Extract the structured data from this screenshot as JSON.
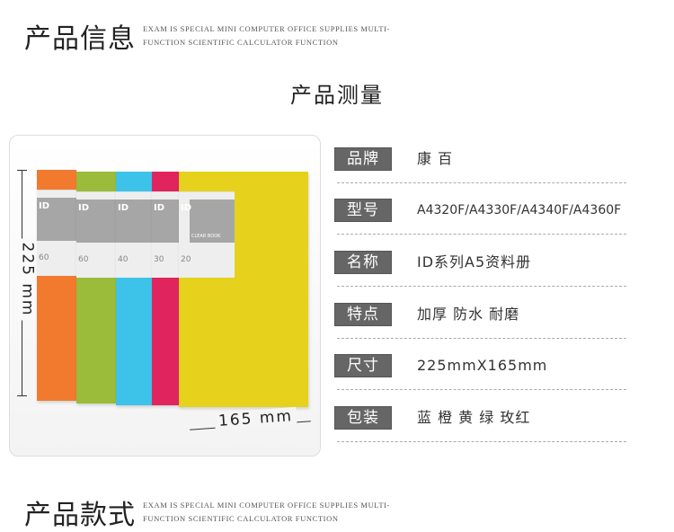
{
  "header_top": {
    "title": "产品信息",
    "en_line1": "EXAM IS SPECIAL MINI COMPUTER OFFICE SUPPLIES MULTI-",
    "en_line2": "FUNCTION SCIENTIFIC CALCULATOR FUNCTION"
  },
  "measure_title": "产品测量",
  "product_image": {
    "height_label": "225 mm",
    "width_label": "165 mm",
    "books": [
      {
        "color": "#f27a2e",
        "spine": "60",
        "logo": "ID"
      },
      {
        "color": "#9bbb3a",
        "spine": "60",
        "logo": "ID"
      },
      {
        "color": "#3dc3ea",
        "spine": "40",
        "logo": "ID"
      },
      {
        "color": "#e0245e",
        "spine": "30",
        "logo": "ID"
      },
      {
        "color": "#e6d21c",
        "spine": "20",
        "logo": "ID",
        "cover_text": "CLEAR BOOK"
      }
    ]
  },
  "specs": [
    {
      "label": "品牌",
      "value": "康 百"
    },
    {
      "label": "型号",
      "value": "A4320F/A4330F/A4340F/A4360F"
    },
    {
      "label": "名称",
      "value": "ID系列A5资料册"
    },
    {
      "label": "特点",
      "value": "加厚 防水 耐磨"
    },
    {
      "label": "尺寸",
      "value": "225mmX165mm"
    },
    {
      "label": "包装",
      "value": "蓝 橙 黄 绿 玫红"
    }
  ],
  "header_bottom": {
    "title": "产品款式",
    "en_line1": "EXAM IS SPECIAL MINI COMPUTER OFFICE SUPPLIES MULTI-",
    "en_line2": "FUNCTION SCIENTIFIC CALCULATOR FUNCTION"
  }
}
